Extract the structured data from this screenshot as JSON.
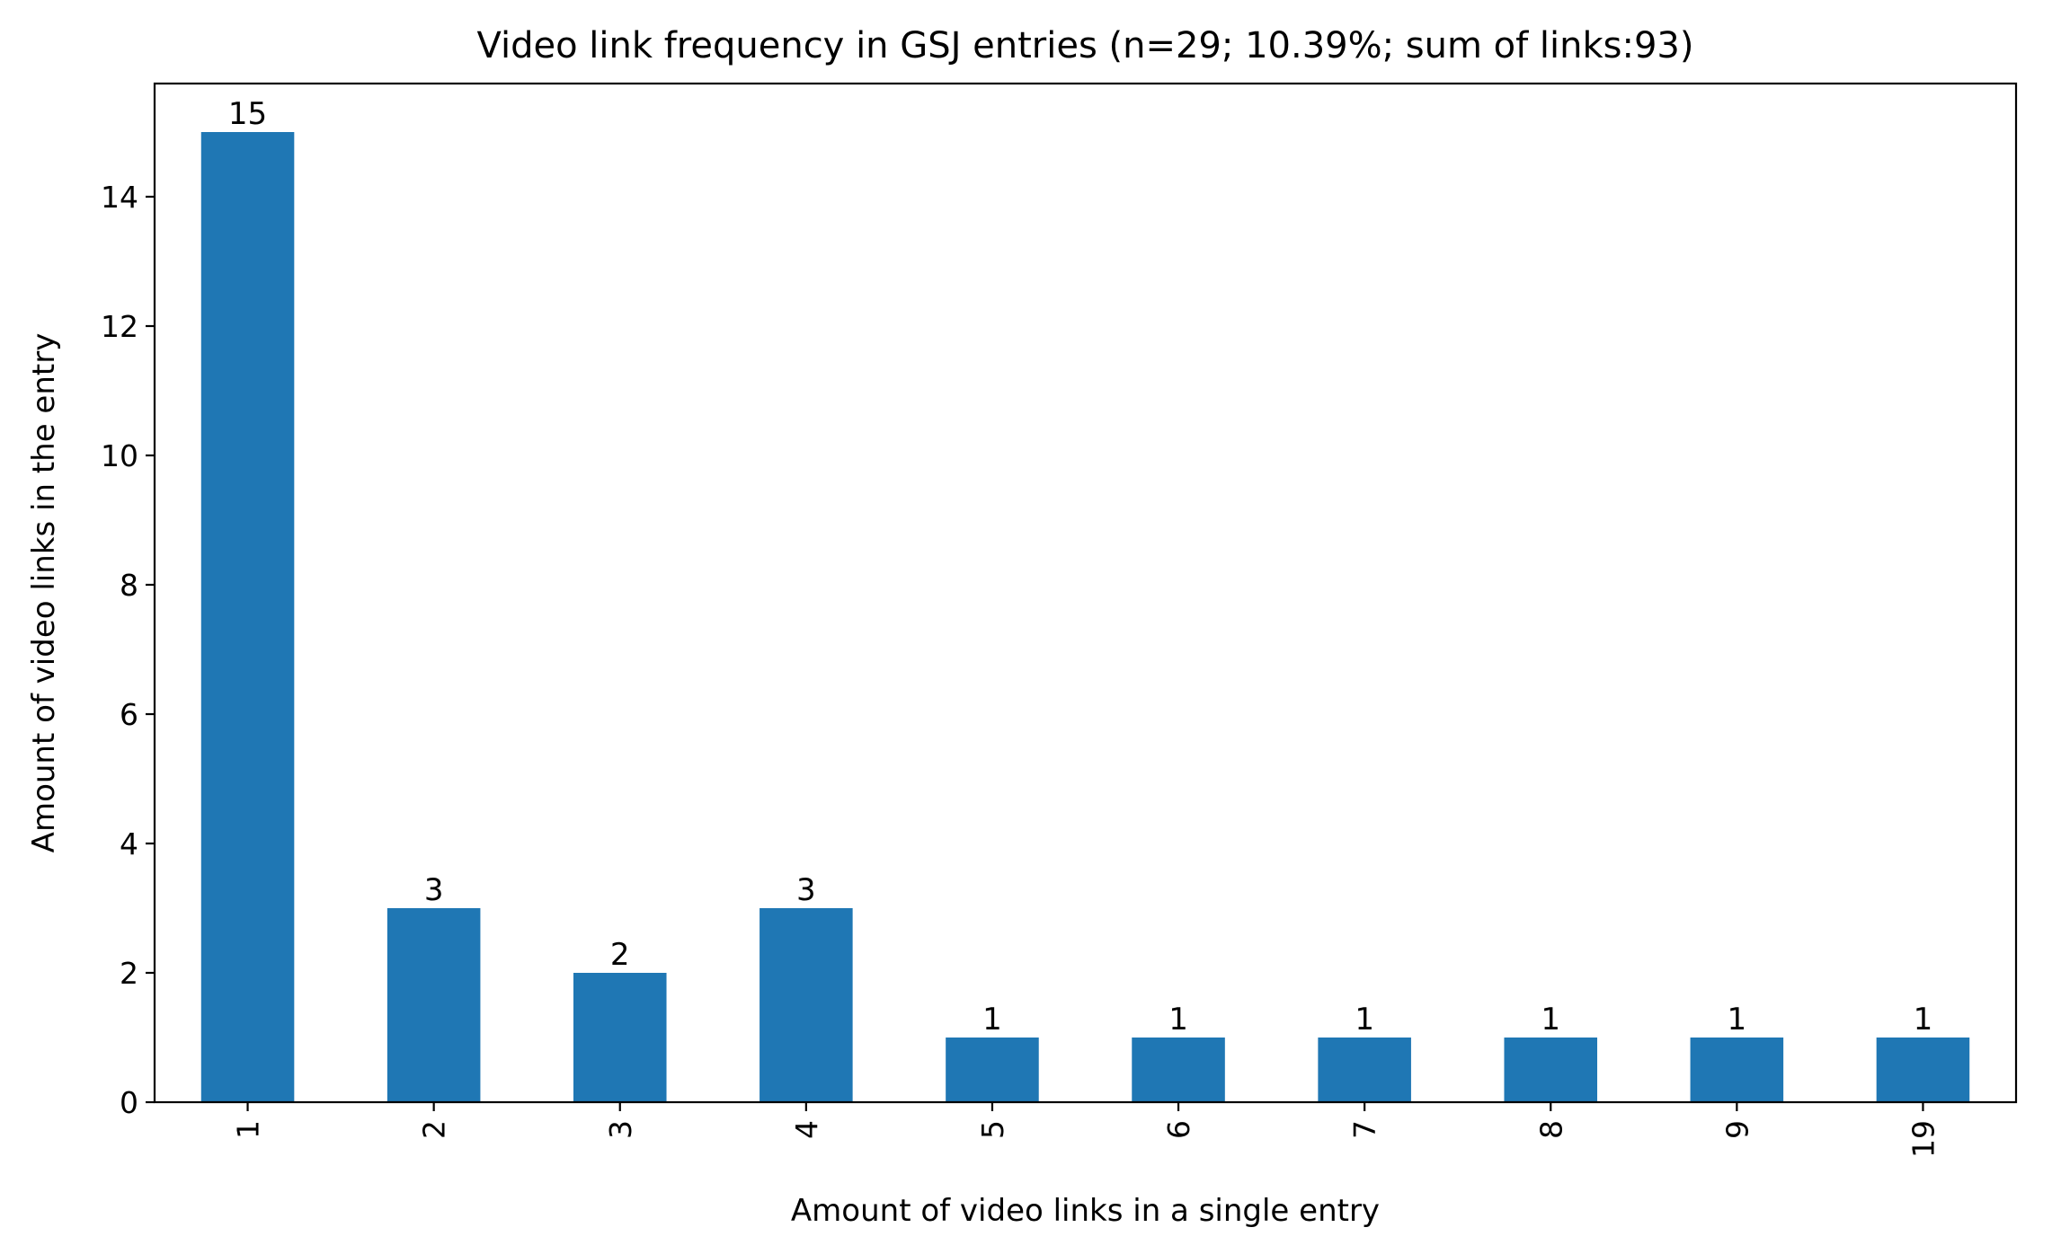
{
  "chart_data": {
    "type": "bar",
    "title": "Video link frequency in GSJ entries (n=29; 10.39%; sum of links:93)",
    "xlabel": "Amount of video links in a single entry",
    "ylabel": "Amount of video links in the entry",
    "categories": [
      "1",
      "2",
      "3",
      "4",
      "5",
      "6",
      "7",
      "8",
      "9",
      "19"
    ],
    "values": [
      15,
      3,
      2,
      3,
      1,
      1,
      1,
      1,
      1,
      1
    ],
    "data_labels": [
      "15",
      "3",
      "2",
      "3",
      "1",
      "1",
      "1",
      "1",
      "1",
      "1"
    ],
    "ylim": [
      0,
      15.75
    ],
    "yticks": [
      0,
      2,
      4,
      6,
      8,
      10,
      12,
      14
    ],
    "ytick_labels": [
      "0",
      "2",
      "4",
      "6",
      "8",
      "10",
      "12",
      "14"
    ],
    "xtick_rotation": 90,
    "grid": false,
    "legend": "none",
    "bar_color": "#1f77b4"
  }
}
